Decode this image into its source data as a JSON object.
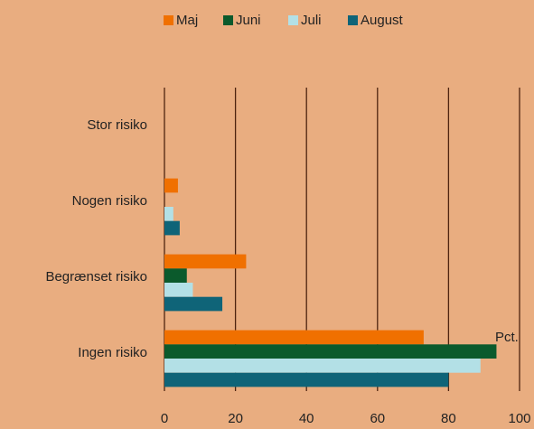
{
  "chart_data": {
    "type": "hbar",
    "categories": [
      "Stor risiko",
      "Nogen risiko",
      "Begrænset risiko",
      "Ingen risiko"
    ],
    "series": [
      {
        "name": "Maj",
        "color": "#f07000",
        "values": [
          0,
          3.8,
          23,
          73
        ]
      },
      {
        "name": "Juni",
        "color": "#0b5a2c",
        "values": [
          0,
          0,
          6.3,
          93.5
        ]
      },
      {
        "name": "Juli",
        "color": "#b3e0e6",
        "values": [
          0,
          2.5,
          8,
          89
        ]
      },
      {
        "name": "August",
        "color": "#0f6478",
        "values": [
          0,
          4.3,
          16.3,
          80
        ]
      }
    ],
    "xlim": [
      0,
      100
    ],
    "xticks": [
      0,
      20,
      40,
      60,
      80,
      100
    ],
    "grid": true,
    "legend": "top",
    "annotation": "Pct."
  }
}
